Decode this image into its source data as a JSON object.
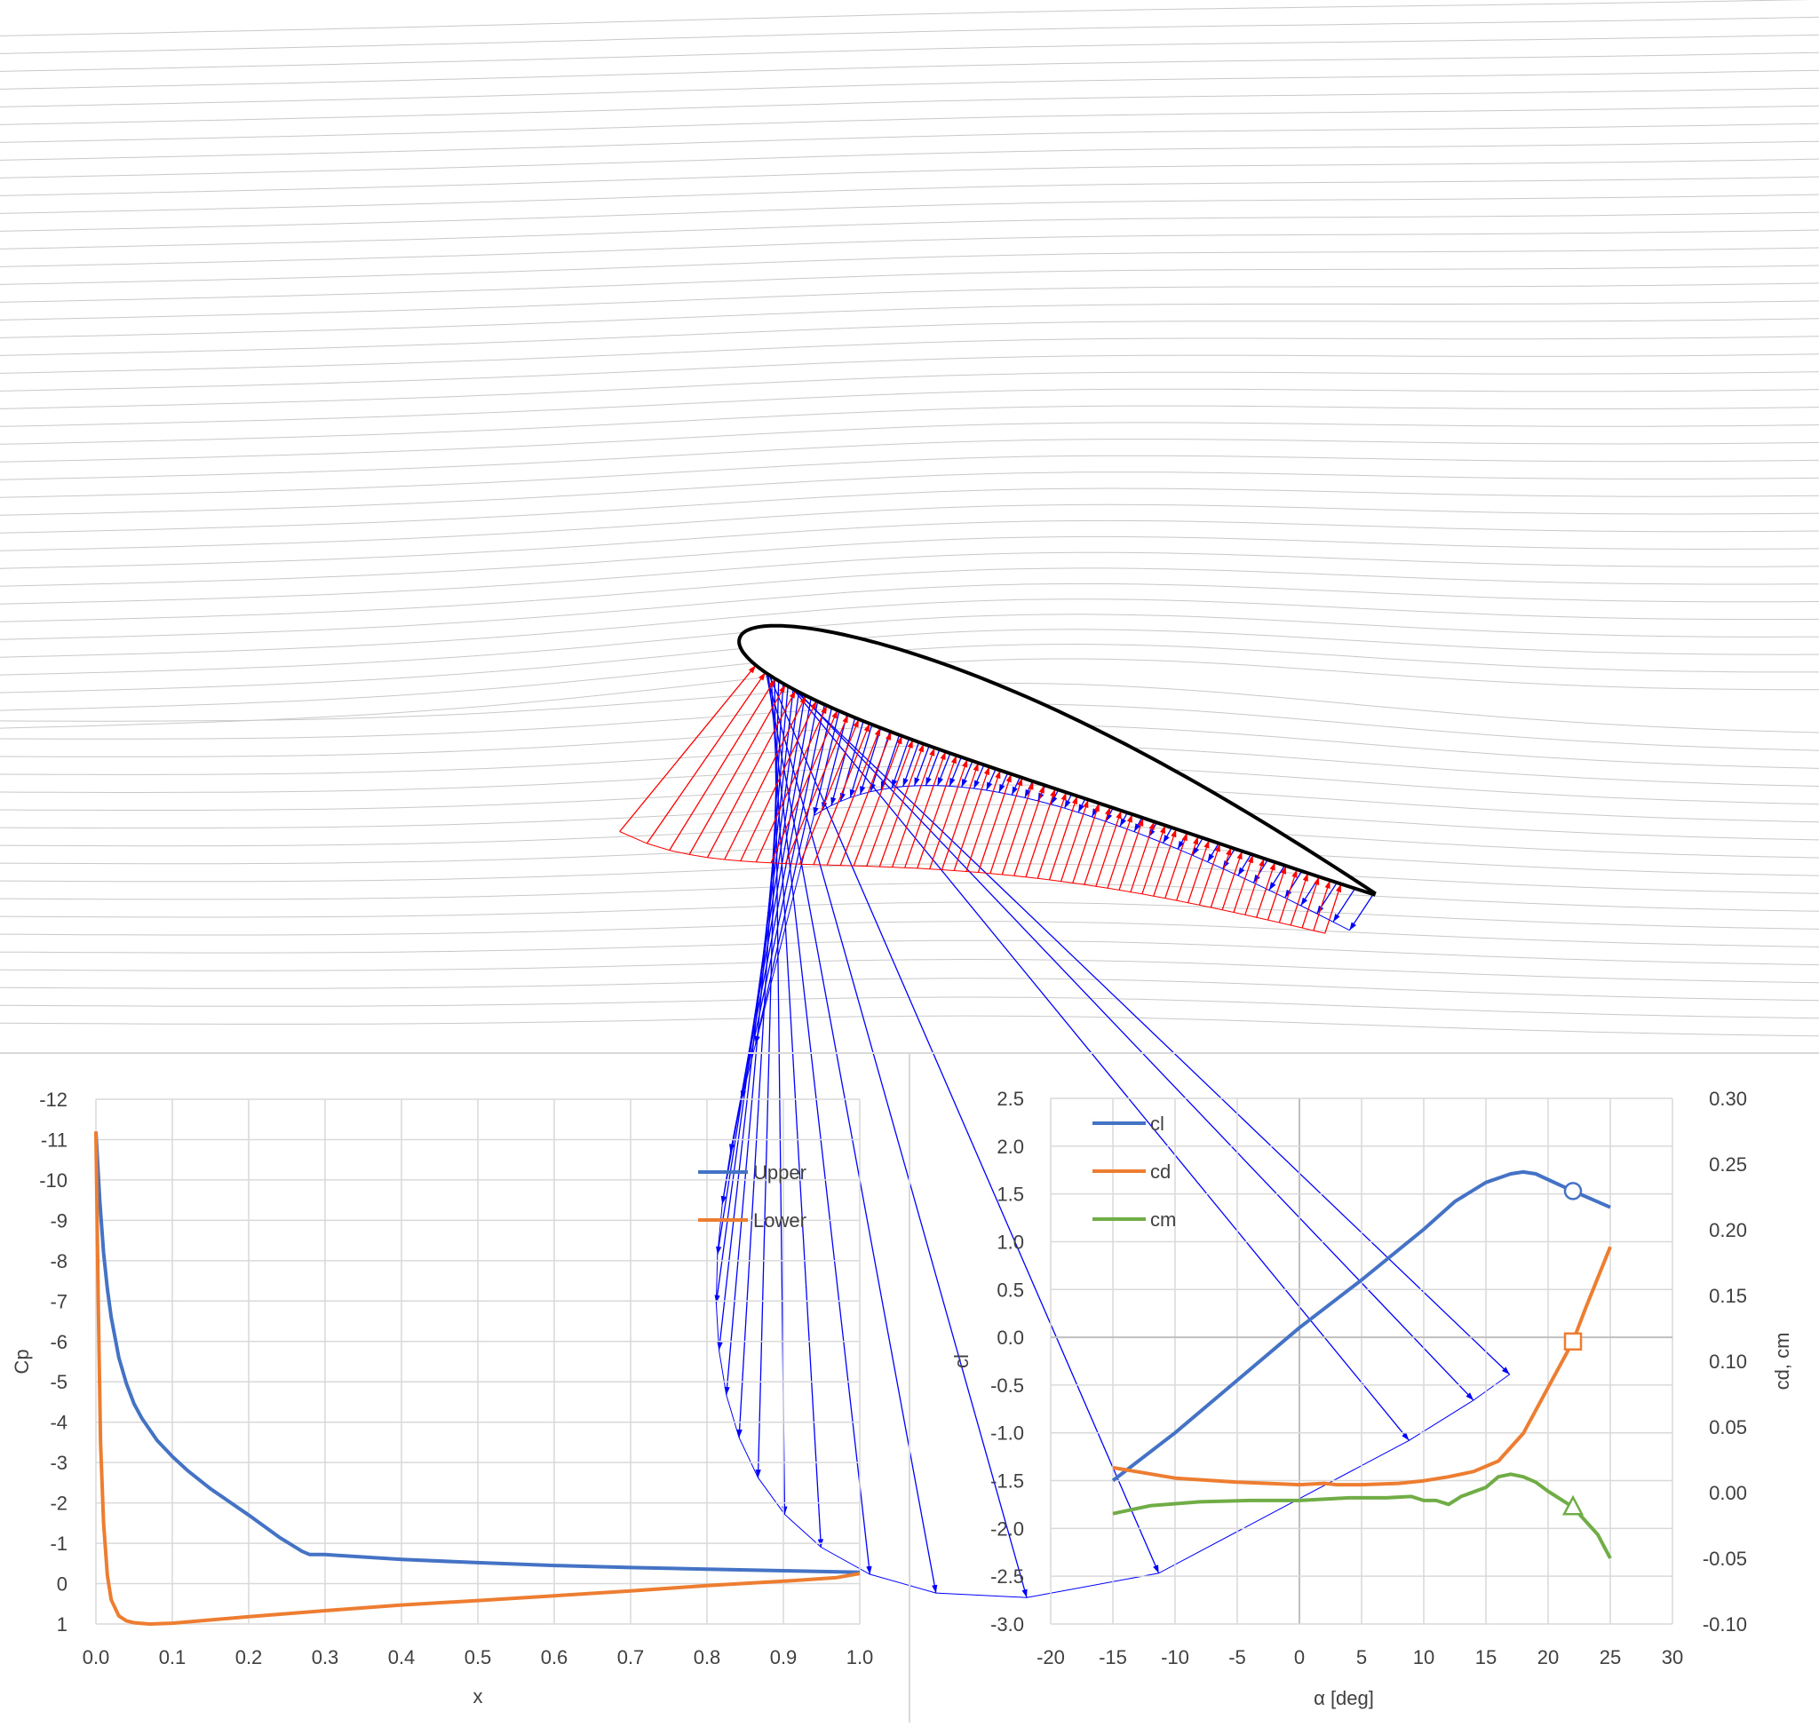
{
  "colors": {
    "upper_vector": "#0000ff",
    "lower_vector": "#ff0000",
    "airfoil": "#000000",
    "streamline": "#c8c8c8",
    "blue_series": "#4472c4",
    "orange_series": "#ed7d31",
    "green_series": "#70ad47",
    "grid": "#d9d9d9"
  },
  "chart_data": [
    {
      "type": "line",
      "panel": "surface-pressure",
      "xlabel": "x",
      "ylabel": "Cp",
      "xlim": [
        0.0,
        1.0
      ],
      "ylim": [
        1,
        -12
      ],
      "y_reversed": true,
      "x_ticks": [
        "0.0",
        "0.1",
        "0.2",
        "0.3",
        "0.4",
        "0.5",
        "0.6",
        "0.7",
        "0.8",
        "0.9",
        "1.0"
      ],
      "y_ticks": [
        "-12",
        "-11",
        "-10",
        "-9",
        "-8",
        "-7",
        "-6",
        "-5",
        "-4",
        "-3",
        "-2",
        "-1",
        "0",
        "1"
      ],
      "legend_position": "top-right",
      "series": [
        {
          "name": "Upper",
          "color": "#4472c4",
          "points": [
            [
              0.0,
              -11.2
            ],
            [
              0.005,
              -9.5
            ],
            [
              0.01,
              -8.2
            ],
            [
              0.015,
              -7.3
            ],
            [
              0.02,
              -6.6
            ],
            [
              0.03,
              -5.6
            ],
            [
              0.04,
              -4.95
            ],
            [
              0.05,
              -4.45
            ],
            [
              0.06,
              -4.1
            ],
            [
              0.08,
              -3.55
            ],
            [
              0.1,
              -3.15
            ],
            [
              0.12,
              -2.8
            ],
            [
              0.15,
              -2.35
            ],
            [
              0.2,
              -1.7
            ],
            [
              0.24,
              -1.15
            ],
            [
              0.27,
              -0.8
            ],
            [
              0.28,
              -0.72
            ],
            [
              0.3,
              -0.72
            ],
            [
              0.4,
              -0.6
            ],
            [
              0.5,
              -0.52
            ],
            [
              0.6,
              -0.45
            ],
            [
              0.7,
              -0.4
            ],
            [
              0.8,
              -0.36
            ],
            [
              0.9,
              -0.32
            ],
            [
              1.0,
              -0.28
            ]
          ]
        },
        {
          "name": "Lower",
          "color": "#ed7d31",
          "points": [
            [
              0.0,
              -11.2
            ],
            [
              0.003,
              -7.0
            ],
            [
              0.006,
              -3.5
            ],
            [
              0.01,
              -1.5
            ],
            [
              0.015,
              -0.2
            ],
            [
              0.02,
              0.4
            ],
            [
              0.03,
              0.8
            ],
            [
              0.04,
              0.92
            ],
            [
              0.05,
              0.97
            ],
            [
              0.07,
              1.0
            ],
            [
              0.1,
              0.98
            ],
            [
              0.2,
              0.82
            ],
            [
              0.3,
              0.67
            ],
            [
              0.4,
              0.53
            ],
            [
              0.5,
              0.42
            ],
            [
              0.6,
              0.3
            ],
            [
              0.7,
              0.18
            ],
            [
              0.8,
              0.05
            ],
            [
              0.9,
              -0.06
            ],
            [
              0.97,
              -0.15
            ],
            [
              1.0,
              -0.25
            ]
          ]
        }
      ]
    },
    {
      "type": "line",
      "panel": "polars",
      "xlabel": "α [deg]",
      "ylabel": "cl",
      "y2label": "cd, cm",
      "xlim": [
        -20,
        30
      ],
      "ylim": [
        -3.0,
        2.5
      ],
      "y2lim": [
        -0.1,
        0.3
      ],
      "x_ticks": [
        "-20",
        "-15",
        "-10",
        "-5",
        "0",
        "5",
        "10",
        "15",
        "20",
        "25",
        "30"
      ],
      "y_ticks": [
        "2.5",
        "2.0",
        "1.5",
        "1.0",
        "0.5",
        "0.0",
        "-0.5",
        "-1.0",
        "-1.5",
        "-2.0",
        "-2.5",
        "-3.0"
      ],
      "y2_ticks": [
        "0.30",
        "0.25",
        "0.20",
        "0.15",
        "0.10",
        "0.05",
        "0.00",
        "-0.05",
        "-0.10"
      ],
      "legend_position": "top-left",
      "current_alpha": 22,
      "series": [
        {
          "name": "cl",
          "axis": "left",
          "color": "#4472c4",
          "marker": "circle",
          "marker_point": [
            22,
            1.53
          ],
          "points": [
            [
              -15,
              -1.5
            ],
            [
              -10,
              -1.0
            ],
            [
              -5,
              -0.45
            ],
            [
              0,
              0.1
            ],
            [
              5,
              0.6
            ],
            [
              10,
              1.13
            ],
            [
              12.5,
              1.42
            ],
            [
              15,
              1.62
            ],
            [
              17,
              1.71
            ],
            [
              18,
              1.73
            ],
            [
              19,
              1.71
            ],
            [
              20,
              1.65
            ],
            [
              22,
              1.53
            ],
            [
              25,
              1.36
            ]
          ]
        },
        {
          "name": "cd",
          "axis": "right",
          "color": "#ed7d31",
          "marker": "square",
          "marker_point": [
            22,
            0.115
          ],
          "points": [
            [
              -15,
              0.019
            ],
            [
              -10,
              0.011
            ],
            [
              -5,
              0.008
            ],
            [
              0,
              0.006
            ],
            [
              2,
              0.007
            ],
            [
              3,
              0.006
            ],
            [
              5,
              0.006
            ],
            [
              8,
              0.007
            ],
            [
              10,
              0.009
            ],
            [
              12,
              0.012
            ],
            [
              14,
              0.016
            ],
            [
              16,
              0.024
            ],
            [
              18,
              0.045
            ],
            [
              20,
              0.08
            ],
            [
              22,
              0.115
            ],
            [
              23,
              0.14
            ],
            [
              25,
              0.187
            ]
          ]
        },
        {
          "name": "cm",
          "axis": "right",
          "color": "#70ad47",
          "marker": "triangle",
          "marker_point": [
            22,
            -0.011
          ],
          "points": [
            [
              -15,
              -0.016
            ],
            [
              -12,
              -0.01
            ],
            [
              -8,
              -0.007
            ],
            [
              -4,
              -0.006
            ],
            [
              0,
              -0.006
            ],
            [
              2,
              -0.005
            ],
            [
              4,
              -0.004
            ],
            [
              7,
              -0.004
            ],
            [
              9,
              -0.003
            ],
            [
              10,
              -0.006
            ],
            [
              11,
              -0.006
            ],
            [
              12,
              -0.009
            ],
            [
              13,
              -0.003
            ],
            [
              15,
              0.004
            ],
            [
              16,
              0.012
            ],
            [
              17,
              0.014
            ],
            [
              18,
              0.012
            ],
            [
              19,
              0.008
            ],
            [
              20,
              0.001
            ],
            [
              22,
              -0.011
            ],
            [
              24,
              -0.032
            ],
            [
              25,
              -0.05
            ]
          ]
        }
      ]
    }
  ]
}
